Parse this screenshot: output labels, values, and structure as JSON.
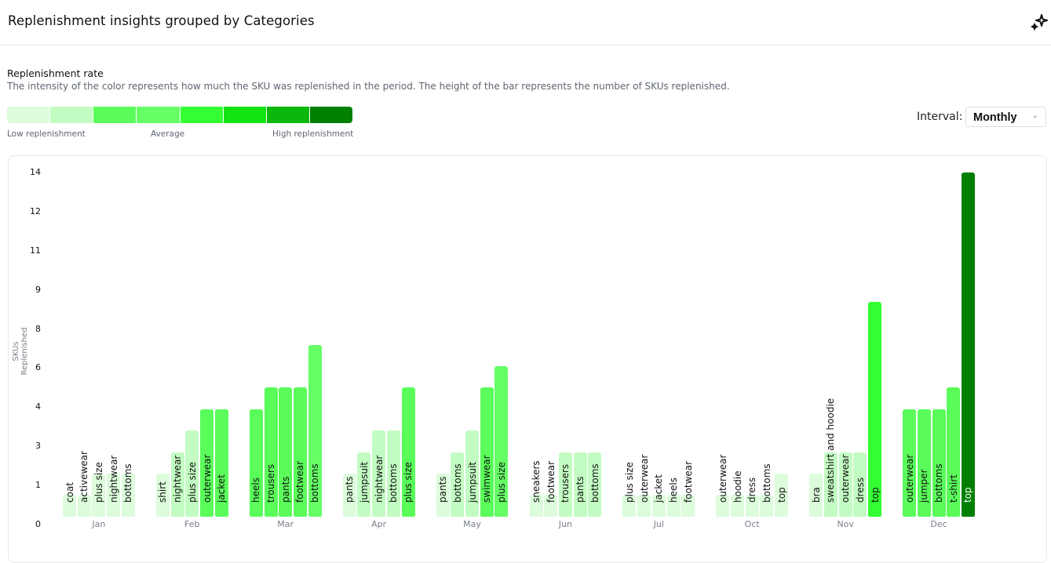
{
  "header": {
    "title": "Replenishment insights grouped by Categories",
    "icon": "sparkles-icon"
  },
  "legend": {
    "title": "Replenishment rate",
    "description": "The intensity of the color represents how much the SKU was replenished in the period. The height of the bar represents the number of SKUs replenished.",
    "colors": [
      "#dcfcdc",
      "#c3fcc3",
      "#5afd5a",
      "#66ff66",
      "#33ff33",
      "#13e313",
      "#0ab70a",
      "#007f00"
    ],
    "low_label": "Low replenishment",
    "mid_label": "Average",
    "high_label": "High replenishment"
  },
  "interval": {
    "label": "Interval:",
    "value": "Monthly"
  },
  "chart_data": {
    "type": "bar",
    "ylabel": "SKUs Replenished",
    "xlabel": "",
    "ylim": [
      0,
      16
    ],
    "y_tick_labels": [
      "0",
      "1",
      "3",
      "4",
      "6",
      "8",
      "9",
      "11",
      "12",
      "14"
    ],
    "groups": [
      {
        "month": "Jan",
        "bars": [
          {
            "name": "coat",
            "value": 1,
            "level": 0
          },
          {
            "name": "activewear",
            "value": 1,
            "level": 0
          },
          {
            "name": "plus size",
            "value": 2,
            "level": 0
          },
          {
            "name": "nightwear",
            "value": 2,
            "level": 0
          },
          {
            "name": "bottoms",
            "value": 2,
            "level": 0
          }
        ]
      },
      {
        "month": "Feb",
        "bars": [
          {
            "name": "shirt",
            "value": 2,
            "level": 0
          },
          {
            "name": "nightwear",
            "value": 3,
            "level": 1
          },
          {
            "name": "plus size",
            "value": 4,
            "level": 1
          },
          {
            "name": "outerwear",
            "value": 5,
            "level": 2
          },
          {
            "name": "jacket",
            "value": 5,
            "level": 2
          }
        ]
      },
      {
        "month": "Mar",
        "bars": [
          {
            "name": "heels",
            "value": 5,
            "level": 2
          },
          {
            "name": "trousers",
            "value": 6,
            "level": 2
          },
          {
            "name": "pants",
            "value": 6,
            "level": 2
          },
          {
            "name": "footwear",
            "value": 6,
            "level": 2
          },
          {
            "name": "bottoms",
            "value": 8,
            "level": 3
          }
        ]
      },
      {
        "month": "Apr",
        "bars": [
          {
            "name": "pants",
            "value": 2,
            "level": 0
          },
          {
            "name": "jumpsuit",
            "value": 3,
            "level": 1
          },
          {
            "name": "nightwear",
            "value": 4,
            "level": 1
          },
          {
            "name": "bottoms",
            "value": 4,
            "level": 1
          },
          {
            "name": "plus size",
            "value": 6,
            "level": 2
          }
        ]
      },
      {
        "month": "May",
        "bars": [
          {
            "name": "pants",
            "value": 2,
            "level": 0
          },
          {
            "name": "bottoms",
            "value": 3,
            "level": 1
          },
          {
            "name": "jumpsuit",
            "value": 4,
            "level": 1
          },
          {
            "name": "swimwear",
            "value": 6,
            "level": 2
          },
          {
            "name": "plus size",
            "value": 7,
            "level": 3
          }
        ]
      },
      {
        "month": "Jun",
        "bars": [
          {
            "name": "sneakers",
            "value": 1,
            "level": 0
          },
          {
            "name": "footwear",
            "value": 1,
            "level": 0
          },
          {
            "name": "trousers",
            "value": 3,
            "level": 1
          },
          {
            "name": "pants",
            "value": 3,
            "level": 1
          },
          {
            "name": "bottoms",
            "value": 3,
            "level": 1
          }
        ]
      },
      {
        "month": "Jul",
        "bars": [
          {
            "name": "plus size",
            "value": 1,
            "level": 0
          },
          {
            "name": "outerwear",
            "value": 1,
            "level": 0
          },
          {
            "name": "jacket",
            "value": 1,
            "level": 0
          },
          {
            "name": "heels",
            "value": 1,
            "level": 0
          },
          {
            "name": "footwear",
            "value": 1,
            "level": 0
          }
        ]
      },
      {
        "month": "Oct",
        "bars": [
          {
            "name": "outerwear",
            "value": 1,
            "level": 0
          },
          {
            "name": "hoodie",
            "value": 1,
            "level": 0
          },
          {
            "name": "dress",
            "value": 1,
            "level": 0
          },
          {
            "name": "bottoms",
            "value": 1,
            "level": 0
          },
          {
            "name": "top",
            "value": 2,
            "level": 0
          }
        ]
      },
      {
        "month": "Nov",
        "bars": [
          {
            "name": "bra",
            "value": 2,
            "level": 0
          },
          {
            "name": "sweatshirt and hoodie",
            "value": 3,
            "level": 1
          },
          {
            "name": "outerwear",
            "value": 3,
            "level": 1
          },
          {
            "name": "dress",
            "value": 3,
            "level": 1
          },
          {
            "name": "top",
            "value": 10,
            "level": 4
          }
        ]
      },
      {
        "month": "Dec",
        "bars": [
          {
            "name": "outerwear",
            "value": 5,
            "level": 2
          },
          {
            "name": "jumper",
            "value": 5,
            "level": 2
          },
          {
            "name": "bottoms",
            "value": 5,
            "level": 2
          },
          {
            "name": "t-shirt",
            "value": 6,
            "level": 2
          },
          {
            "name": "top",
            "value": 16,
            "level": 7
          }
        ]
      }
    ]
  }
}
